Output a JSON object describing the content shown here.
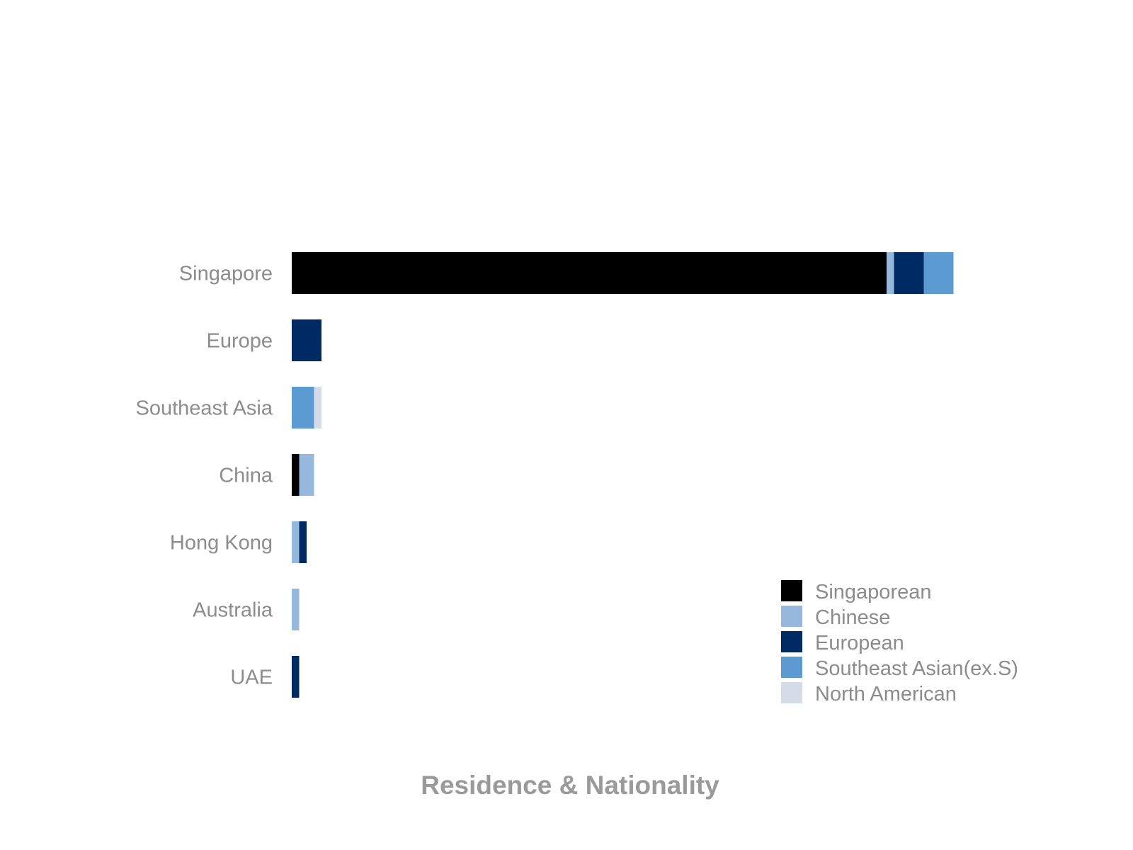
{
  "chart_data": {
    "type": "bar",
    "orientation": "horizontal",
    "stacked": true,
    "title": "Residence & Nationality",
    "categories": [
      "Singapore",
      "Europe",
      "Southeast Asia",
      "China",
      "Hong Kong",
      "Australia",
      "UAE"
    ],
    "series": [
      {
        "name": "Singaporean",
        "color": "#000000",
        "values": [
          80,
          0,
          0,
          1,
          0,
          0,
          0
        ]
      },
      {
        "name": "Chinese",
        "color": "#95b8dc",
        "values": [
          1,
          0,
          0,
          2,
          1,
          1,
          0
        ]
      },
      {
        "name": "European",
        "color": "#002a64",
        "values": [
          4,
          4,
          0,
          0,
          1,
          0,
          1
        ]
      },
      {
        "name": "Southeast Asian(ex.S)",
        "color": "#5b9bd2",
        "values": [
          4,
          0,
          3,
          0,
          0,
          0,
          0
        ]
      },
      {
        "name": "North American",
        "color": "#d5dce8",
        "values": [
          0,
          0,
          1,
          0,
          0,
          0,
          0
        ]
      }
    ],
    "xlim": [
      0,
      120
    ],
    "xlabel": "",
    "ylabel": "",
    "grid": false,
    "legend_position": "bottom-right"
  }
}
